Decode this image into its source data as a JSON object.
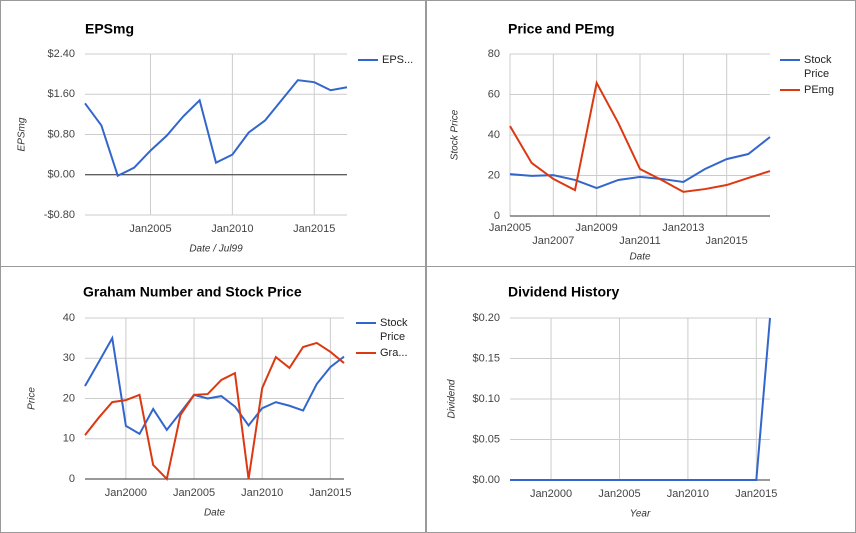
{
  "chart_data": [
    {
      "type": "line",
      "title": "EPSmg",
      "xlabel": "Date / Jul99",
      "ylabel": "EPSmg",
      "x": [
        2001,
        2002,
        2003,
        2004,
        2005,
        2006,
        2007,
        2008,
        2009,
        2010,
        2011,
        2012,
        2013,
        2014,
        2015,
        2016,
        2017
      ],
      "series": [
        {
          "name": "EPS...",
          "color": "#3366cc",
          "values": [
            1.42,
            0.98,
            -0.02,
            0.14,
            0.48,
            0.78,
            1.16,
            1.48,
            0.24,
            0.4,
            0.84,
            1.08,
            1.48,
            1.88,
            1.84,
            1.68,
            1.74
          ]
        }
      ],
      "xlim": [
        2001,
        2017
      ],
      "xticks": [
        {
          "value": 2005,
          "label": "Jan2005"
        },
        {
          "value": 2010,
          "label": "Jan2010"
        },
        {
          "value": 2015,
          "label": "Jan2015"
        }
      ],
      "ylim": [
        -0.8,
        2.4
      ],
      "yticks": [
        {
          "value": -0.8,
          "label": "-$0.80"
        },
        {
          "value": 0,
          "label": "$0.00"
        },
        {
          "value": 0.8,
          "label": "$0.80"
        },
        {
          "value": 1.6,
          "label": "$1.60"
        },
        {
          "value": 2.4,
          "label": "$2.40"
        }
      ],
      "grid": true,
      "legend": "right"
    },
    {
      "type": "line",
      "title": "Price and PEmg",
      "xlabel": "Date",
      "ylabel": "Stock Price",
      "x": [
        2005,
        2006,
        2007,
        2008,
        2009,
        2010,
        2011,
        2012,
        2013,
        2014,
        2015,
        2016,
        2017
      ],
      "series": [
        {
          "name": "Stock Price",
          "color": "#3366cc",
          "values": [
            20.7,
            19.8,
            20.2,
            17.8,
            13.8,
            17.8,
            19.3,
            18.3,
            16.8,
            23.2,
            28.1,
            30.6,
            39
          ]
        },
        {
          "name": "PEmg",
          "color": "#dc3912",
          "values": [
            44.4,
            26.2,
            18.3,
            12.8,
            65.7,
            45.9,
            23.2,
            17.8,
            11.9,
            13.3,
            15.3,
            18.8,
            22.2
          ]
        }
      ],
      "xlim": [
        2005,
        2017
      ],
      "xticks": [
        {
          "value": 2005,
          "label": "Jan2005"
        },
        {
          "value": 2007,
          "label": "Jan2007"
        },
        {
          "value": 2009,
          "label": "Jan2009"
        },
        {
          "value": 2011,
          "label": "Jan2011"
        },
        {
          "value": 2013,
          "label": "Jan2013"
        },
        {
          "value": 2015,
          "label": "Jan2015"
        }
      ],
      "ylim": [
        0,
        80
      ],
      "yticks": [
        0,
        20,
        40,
        60,
        80
      ],
      "grid": true,
      "legend": "right"
    },
    {
      "type": "line",
      "title": "Graham Number and Stock Price",
      "xlabel": "Date",
      "ylabel": "Price",
      "x": [
        1997,
        1998,
        1999,
        2000,
        2001,
        2002,
        2003,
        2004,
        2005,
        2006,
        2007,
        2008,
        2009,
        2010,
        2011,
        2012,
        2013,
        2014,
        2015,
        2016
      ],
      "series": [
        {
          "name": "Stock Price",
          "color": "#3366cc",
          "values": [
            23.1,
            29,
            35,
            13.2,
            11.2,
            17.4,
            12.2,
            16.5,
            20.9,
            20,
            20.6,
            18,
            13.3,
            17.6,
            19.1,
            18.2,
            17,
            23.6,
            27.8,
            30.4
          ]
        },
        {
          "name": "Gra...",
          "color": "#dc3912",
          "values": [
            10.9,
            15.2,
            19.1,
            19.6,
            20.9,
            3.5,
            0,
            15.9,
            20.9,
            21.1,
            24.6,
            26.3,
            0,
            22.6,
            30.3,
            27.6,
            32.8,
            33.8,
            31.6,
            28.8
          ]
        }
      ],
      "xlim": [
        1997,
        2016
      ],
      "xticks": [
        {
          "value": 2000,
          "label": "Jan2000"
        },
        {
          "value": 2005,
          "label": "Jan2005"
        },
        {
          "value": 2010,
          "label": "Jan2010"
        },
        {
          "value": 2015,
          "label": "Jan2015"
        }
      ],
      "ylim": [
        0,
        40
      ],
      "yticks": [
        0,
        10,
        20,
        30,
        40
      ],
      "grid": true,
      "legend": "right"
    },
    {
      "type": "line",
      "title": "Dividend History",
      "xlabel": "Year",
      "ylabel": "Dividend",
      "x": [
        1997,
        1998,
        1999,
        2000,
        2001,
        2002,
        2003,
        2004,
        2005,
        2006,
        2007,
        2008,
        2009,
        2010,
        2011,
        2012,
        2013,
        2014,
        2015,
        2016
      ],
      "series": [
        {
          "color": "#3366cc",
          "values": [
            0,
            0,
            0,
            0,
            0,
            0,
            0,
            0,
            0,
            0,
            0,
            0,
            0,
            0,
            0,
            0,
            0,
            0,
            0,
            0.2
          ]
        }
      ],
      "xlim": [
        1997,
        2016
      ],
      "xticks": [
        {
          "value": 2000,
          "label": "Jan2000"
        },
        {
          "value": 2005,
          "label": "Jan2005"
        },
        {
          "value": 2010,
          "label": "Jan2010"
        },
        {
          "value": 2015,
          "label": "Jan2015"
        }
      ],
      "ylim": [
        0,
        0.2
      ],
      "yticks": [
        {
          "value": 0,
          "label": "$0.00"
        },
        {
          "value": 0.05,
          "label": "$0.05"
        },
        {
          "value": 0.1,
          "label": "$0.10"
        },
        {
          "value": 0.15,
          "label": "$0.15"
        },
        {
          "value": 0.2,
          "label": "$0.20"
        }
      ],
      "grid": true
    }
  ]
}
